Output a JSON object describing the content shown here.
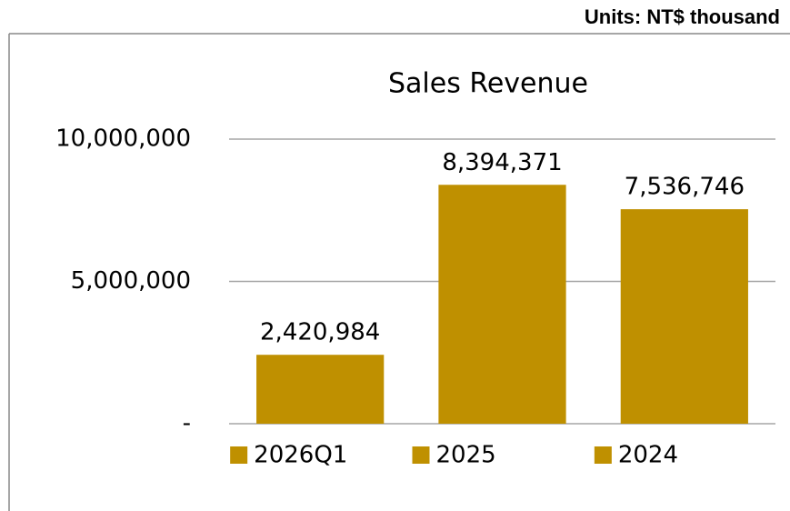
{
  "units": "Units: NT$ thousand",
  "chart_data": {
    "type": "bar",
    "title": "Sales Revenue",
    "categories": [
      "2026Q1",
      "2025",
      "2024"
    ],
    "values": [
      2420984,
      8394371,
      7536746
    ],
    "value_labels": [
      "2,420,984",
      "8,394,371",
      "7,536,746"
    ],
    "color": "#bf9000",
    "ylim": [
      0,
      10000000
    ],
    "yticks": [
      {
        "value": 0,
        "label": "-"
      },
      {
        "value": 5000000,
        "label": "5,000,000"
      },
      {
        "value": 10000000,
        "label": "10,000,000"
      }
    ],
    "grid": true
  }
}
